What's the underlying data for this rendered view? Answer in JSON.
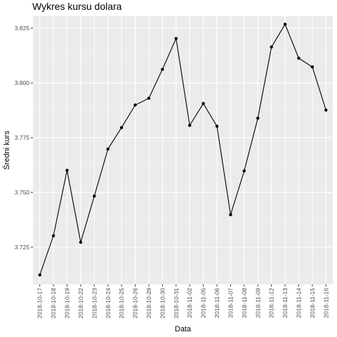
{
  "chart_data": {
    "type": "line",
    "title": "Wykres kursu dolara",
    "xlabel": "Data",
    "ylabel": "Średni kurs",
    "categories": [
      "2018-10-17",
      "2018-10-18",
      "2018-10-19",
      "2018-10-22",
      "2018-10-23",
      "2018-10-24",
      "2018-10-25",
      "2018-10-26",
      "2018-10-29",
      "2018-10-30",
      "2018-10-31",
      "2018-11-02",
      "2018-11-05",
      "2018-11-06",
      "2018-11-07",
      "2018-11-08",
      "2018-11-09",
      "2018-11-12",
      "2018-11-13",
      "2018-11-14",
      "2018-11-15",
      "2018-11-16"
    ],
    "values": [
      3.7123,
      3.7302,
      3.7601,
      3.7272,
      3.7483,
      3.7698,
      3.7796,
      3.7899,
      3.793,
      3.8062,
      3.8203,
      3.7806,
      3.7906,
      3.7802,
      3.7398,
      3.7598,
      3.7839,
      3.8164,
      3.8268,
      3.8113,
      3.8073,
      3.7876
    ],
    "ylim": [
      3.708,
      3.8305
    ],
    "yticks": [
      "3.725",
      "3.750",
      "3.775",
      "3.800",
      "3.825"
    ],
    "grid": true,
    "colors": {
      "panel": "#EBEBEB",
      "grid_major": "#FFFFFF",
      "grid_minor": "#F5F5F5",
      "line": "#000000",
      "axis_text": "#4D4D4D"
    }
  }
}
